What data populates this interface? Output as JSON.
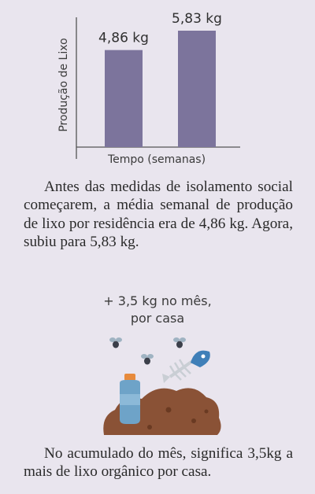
{
  "chart_data": {
    "type": "bar",
    "categories": [
      "",
      ""
    ],
    "values": [
      4.86,
      5.83
    ],
    "data_labels": [
      "4,86 kg",
      "5,83 kg"
    ],
    "title": "",
    "xlabel": "Tempo (semanas)",
    "ylabel": "Produção de Lixo",
    "ylim": [
      0,
      6.5
    ],
    "grid": false,
    "bar_color": "#7c749c"
  },
  "paragraph_1": "Antes das medidas de isolamento social começarem, a média semanal de produção de lixo por residência era de 4,86 kg. Agora, subiu para 5,83 kg.",
  "callout": {
    "line1": "+ 3,5 kg no mês,",
    "line2": "por casa"
  },
  "illustration": {
    "icons": [
      "fly-icon",
      "fly-icon",
      "fly-icon",
      "bottle-icon",
      "fish-bone-icon",
      "garbage-pile-icon"
    ]
  },
  "paragraph_2": "No acumulado do mês, significa 3,5kg a mais de lixo orgânico por casa.",
  "colors": {
    "background": "#e9e5ee",
    "bar": "#7c749c",
    "axis": "#555555",
    "dirt": "#8a5236",
    "bottle": "#6ea3c8",
    "fish": "#3f7fb8"
  }
}
